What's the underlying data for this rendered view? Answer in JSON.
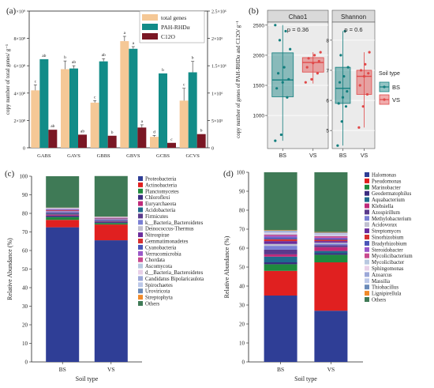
{
  "panel_labels": [
    "(a)",
    "(b)",
    "(c)",
    "(d)"
  ],
  "chart_data": [
    {
      "id": "a",
      "type": "bar",
      "categories": [
        "GABS",
        "GAVS",
        "GBBS",
        "GBVS",
        "GCBS",
        "GCVS"
      ],
      "ylabel": "copy number of total genes/ g⁻¹",
      "y2label": "copy number of genes of PAH-RHDα and C12O/ g⁻¹",
      "ylim": [
        0,
        1000000000
      ],
      "yticks": [
        "0",
        "2×10⁸",
        "4×10⁸",
        "6×10⁸",
        "8×10⁸",
        "1×10⁹"
      ],
      "y2lim": [
        0,
        2500000
      ],
      "y2ticks": [
        "0",
        "5×10⁵",
        "1×10⁶",
        "1.5×10⁶",
        "2×10⁶",
        "2.5×10⁶"
      ],
      "legend": "top-right",
      "series": [
        {
          "name": "total genes",
          "color": "#f5c896",
          "axis": "left",
          "values": [
            420000000,
            575000000,
            330000000,
            780000000,
            80000000,
            345000000
          ],
          "errors": [
            40000000,
            60000000,
            15000000,
            35000000,
            10000000,
            90000000
          ],
          "letters": [
            "c",
            "b",
            "c",
            "a",
            "d",
            "c"
          ]
        },
        {
          "name": "PAH-RHDα",
          "color": "#128c88",
          "axis": "right",
          "values": [
            1620000,
            1450000,
            1580000,
            1810000,
            1360000,
            1380000
          ],
          "errors": [
            0,
            50000,
            50000,
            40000,
            0,
            200000
          ],
          "letters": [
            "ab",
            "ab",
            "ab",
            "a",
            "b",
            "b"
          ]
        },
        {
          "name": "C12O",
          "color": "#7a1724",
          "axis": "right",
          "values": [
            330000,
            240000,
            220000,
            370000,
            90000,
            250000
          ],
          "errors": [
            0,
            0,
            0,
            50000,
            0,
            0
          ],
          "letters": [
            "ab",
            "ab",
            "b",
            "a",
            "c",
            "b"
          ]
        }
      ]
    },
    {
      "id": "b",
      "type": "box",
      "legend_title": "Soil type",
      "groups": [
        "BS",
        "VS"
      ],
      "group_colors": {
        "BS": "#127e7e",
        "VS": "#e04848"
      },
      "facets": [
        {
          "title": "Chao1",
          "p_text": "p = 0.36",
          "ylim": [
            450,
            2550
          ],
          "yticks": [
            1000,
            1500,
            2000,
            2500
          ],
          "boxes": [
            {
              "group": "BS",
              "min": 580,
              "q1": 1310,
              "median": 1590,
              "q3": 2040,
              "max": 2500,
              "points": [
                580,
                680,
                1300,
                1450,
                1550,
                1600,
                1700,
                1800,
                2100,
                2250,
                2400,
                2500
              ]
            },
            {
              "group": "VS",
              "min": 1530,
              "q1": 1720,
              "median": 1880,
              "q3": 1960,
              "max": 2050,
              "points": [
                1550,
                1600,
                1700,
                1800,
                1870,
                1900,
                1950,
                2000,
                2050
              ]
            }
          ]
        },
        {
          "title": "Shannon",
          "p_text": "p = 0.6",
          "ylim": [
            4.4,
            8.6
          ],
          "yticks": [
            5,
            6,
            7,
            8
          ],
          "boxes": [
            {
              "group": "BS",
              "min": 4.5,
              "q1": 5.9,
              "median": 6.4,
              "q3": 7.1,
              "max": 8.3,
              "points": [
                4.5,
                5.3,
                5.8,
                5.9,
                6.1,
                6.3,
                6.6,
                6.8,
                7.1,
                7.5,
                8.3
              ]
            },
            {
              "group": "VS",
              "min": 5.1,
              "q1": 6.2,
              "median": 6.8,
              "q3": 7.0,
              "max": 7.6,
              "points": [
                5.1,
                5.8,
                6.2,
                6.5,
                6.8,
                6.9,
                7.0,
                7.2,
                7.6
              ]
            }
          ]
        }
      ]
    },
    {
      "id": "c",
      "type": "stacked_bar",
      "categories": [
        "BS",
        "VS"
      ],
      "xlabel": "Soil type",
      "ylabel": "Relative Abundance (%)",
      "ylim": [
        0,
        100
      ],
      "yticks": [
        0,
        10,
        20,
        30,
        40,
        50,
        60,
        70,
        80,
        90,
        100
      ],
      "legend": "right",
      "series": [
        {
          "name": "Proteobacteria",
          "color": "#2f3e96",
          "values": [
            72.5,
            65.5
          ]
        },
        {
          "name": "Actinobacteria",
          "color": "#e02020",
          "values": [
            4.0,
            8.5
          ]
        },
        {
          "name": "Planctomycetes",
          "color": "#1f8a3e",
          "values": [
            1.5,
            0.8
          ]
        },
        {
          "name": "Chloroflexi",
          "color": "#3b2c80",
          "values": [
            0.8,
            0.5
          ]
        },
        {
          "name": "Euryarchaeota",
          "color": "#bf2a7a",
          "values": [
            0.6,
            0.3
          ]
        },
        {
          "name": "Acidobacteria",
          "color": "#1f6a8c",
          "values": [
            0.5,
            0.3
          ]
        },
        {
          "name": "Firmicutes",
          "color": "#5a3a8c",
          "values": [
            0.5,
            0.4
          ]
        },
        {
          "name": "k__Bacteria_Bacteroidetes",
          "color": "#7a7fd4",
          "values": [
            0.4,
            0.3
          ]
        },
        {
          "name": "Deinococcus-Thermus",
          "color": "#c0c0d0",
          "values": [
            0.3,
            0.2
          ]
        },
        {
          "name": "Nitrospirae",
          "color": "#6a2c9c",
          "values": [
            0.3,
            0.2
          ]
        },
        {
          "name": "Gemmatimonadetes",
          "color": "#d63030",
          "values": [
            0.3,
            0.2
          ]
        },
        {
          "name": "Cyanobacteria",
          "color": "#4a56b8",
          "values": [
            0.2,
            0.2
          ]
        },
        {
          "name": "Verrucomicrobia",
          "color": "#9a58c8",
          "values": [
            0.2,
            0.2
          ]
        },
        {
          "name": "Chordata",
          "color": "#c84a8e",
          "values": [
            0.2,
            0.1
          ]
        },
        {
          "name": "Ascomycota",
          "color": "#b8c8e0",
          "values": [
            0.2,
            0.1
          ]
        },
        {
          "name": "d__Bacteria_Bacteroidetes",
          "color": "#e8d0e8",
          "values": [
            0.2,
            0.1
          ]
        },
        {
          "name": "Candidatus Bipolaricaulota",
          "color": "#9ca8d8",
          "values": [
            0.1,
            0.1
          ]
        },
        {
          "name": "Spirochaetes",
          "color": "#bcc8e8",
          "values": [
            0.1,
            0.1
          ]
        },
        {
          "name": "Uroviricota",
          "color": "#6a8ab8",
          "values": [
            0.1,
            0.1
          ]
        },
        {
          "name": "Streptophyta",
          "color": "#f08a2a",
          "values": [
            0.1,
            0.1
          ]
        },
        {
          "name": "Others",
          "color": "#3f7a56",
          "values": [
            16.9,
            21.8
          ]
        }
      ]
    },
    {
      "id": "d",
      "type": "stacked_bar",
      "categories": [
        "BS",
        "VS"
      ],
      "xlabel": "Soil type",
      "ylabel": "Relative Abundance (%)",
      "ylim": [
        0,
        100
      ],
      "yticks": [
        0,
        10,
        20,
        30,
        40,
        50,
        60,
        70,
        80,
        90,
        100
      ],
      "legend": "right",
      "series": [
        {
          "name": "Halomonas",
          "color": "#2f3e96",
          "values": [
            35.0,
            27.0
          ]
        },
        {
          "name": "Pseudomonas",
          "color": "#e02020",
          "values": [
            13.0,
            25.5
          ]
        },
        {
          "name": "Marinobacter",
          "color": "#1f8a3e",
          "values": [
            3.5,
            4.0
          ]
        },
        {
          "name": "Geodermatophilus",
          "color": "#3b2c80",
          "values": [
            1.0,
            0.8
          ]
        },
        {
          "name": "Aquabacterium",
          "color": "#1f6a8c",
          "values": [
            3.0,
            1.2
          ]
        },
        {
          "name": "Klebsiella",
          "color": "#bf2a7a",
          "values": [
            1.2,
            2.0
          ]
        },
        {
          "name": "Azospirillum",
          "color": "#5a3a8c",
          "values": [
            2.5,
            1.0
          ]
        },
        {
          "name": "Methylobacterium",
          "color": "#7a7fd4",
          "values": [
            2.0,
            0.8
          ]
        },
        {
          "name": "Acidovorax",
          "color": "#c0c0d0",
          "values": [
            1.0,
            0.6
          ]
        },
        {
          "name": "Streptomyces",
          "color": "#6a2c9c",
          "values": [
            1.5,
            0.8
          ]
        },
        {
          "name": "Sinorhizobium",
          "color": "#d63030",
          "values": [
            1.0,
            0.7
          ]
        },
        {
          "name": "Bradyrhizobium",
          "color": "#4a56b8",
          "values": [
            1.0,
            0.6
          ]
        },
        {
          "name": "Steroidobacter",
          "color": "#9a58c8",
          "values": [
            0.8,
            0.5
          ]
        },
        {
          "name": "Mycolicibacterium",
          "color": "#c84a8e",
          "values": [
            0.6,
            0.8
          ]
        },
        {
          "name": "Mycolicibacter",
          "color": "#b8c8e0",
          "values": [
            0.5,
            0.5
          ]
        },
        {
          "name": "Sphingomonas",
          "color": "#e8d0e8",
          "values": [
            0.5,
            0.4
          ]
        },
        {
          "name": "Azoarcus",
          "color": "#9ca8d8",
          "values": [
            0.4,
            0.4
          ]
        },
        {
          "name": "Massilia",
          "color": "#bcc8e8",
          "values": [
            0.4,
            0.3
          ]
        },
        {
          "name": "Thiobacillus",
          "color": "#6a8ab8",
          "values": [
            0.3,
            0.3
          ]
        },
        {
          "name": "Lignipirellula",
          "color": "#f08a2a",
          "values": [
            0.3,
            0.3
          ]
        },
        {
          "name": "Others",
          "color": "#3f7a56",
          "values": [
            30.5,
            31.5
          ]
        }
      ]
    }
  ]
}
